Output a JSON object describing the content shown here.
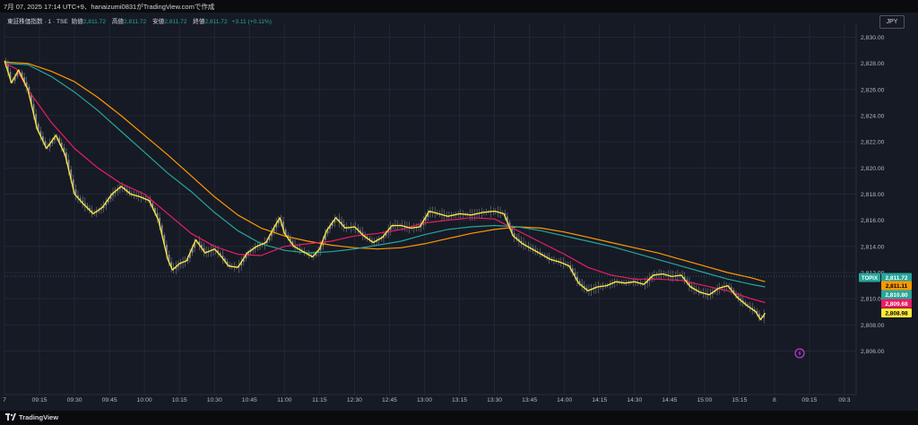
{
  "header": {
    "caption": "7月 07, 2025 17:14 UTC+9、hanaizumi0831がTradingView.comで作成"
  },
  "legend": {
    "symbol": "東証株価指数 · 1 · TSE",
    "open_label": "始値",
    "open_value": "2,811.72",
    "high_label": "高値",
    "high_value": "2,811.72",
    "low_label": "安値",
    "low_value": "2,811.72",
    "close_label": "終値",
    "close_value": "2,811.72",
    "change": "+3.11 (+0.11%)"
  },
  "currency": "JPY",
  "footer": {
    "brand": "TradingView",
    "brand_icon": "tradingview-logo-icon"
  },
  "colors": {
    "price": "#ffeb3b",
    "ma_fast": "#e91e63",
    "ma_mid": "#26a69a",
    "ma_slow": "#ff9800",
    "candle": "#9aa0aa",
    "grid": "#232734",
    "lightning": "#e040fb"
  },
  "chart_data": {
    "type": "line",
    "title": "東証株価指数 · 1 · TSE",
    "ylim": [
      2805,
      2831
    ],
    "y_ticks": [
      2806,
      2808,
      2810,
      2812,
      2814,
      2816,
      2818,
      2820,
      2822,
      2824,
      2826,
      2828,
      2830
    ],
    "y_tick_labels": [
      "2,806.00",
      "2,808.00",
      "2,810.00",
      "2,812.00",
      "2,814.00",
      "2,816.00",
      "2,818.00",
      "2,820.00",
      "2,822.00",
      "2,824.00",
      "2,826.00",
      "2,828.00",
      "2,830.00"
    ],
    "x_ticks": [
      {
        "t": 0,
        "label": "7"
      },
      {
        "t": 15,
        "label": "09:15"
      },
      {
        "t": 30,
        "label": "09:30"
      },
      {
        "t": 45,
        "label": "09:45"
      },
      {
        "t": 60,
        "label": "10:00"
      },
      {
        "t": 75,
        "label": "10:15"
      },
      {
        "t": 90,
        "label": "10:30"
      },
      {
        "t": 105,
        "label": "10:45"
      },
      {
        "t": 120,
        "label": "11:00"
      },
      {
        "t": 135,
        "label": "11:15"
      },
      {
        "t": 150,
        "label": "12:30"
      },
      {
        "t": 165,
        "label": "12:45"
      },
      {
        "t": 180,
        "label": "13:00"
      },
      {
        "t": 195,
        "label": "13:15"
      },
      {
        "t": 210,
        "label": "13:30"
      },
      {
        "t": 225,
        "label": "13:45"
      },
      {
        "t": 240,
        "label": "14:00"
      },
      {
        "t": 255,
        "label": "14:15"
      },
      {
        "t": 270,
        "label": "14:30"
      },
      {
        "t": 285,
        "label": "14:45"
      },
      {
        "t": 300,
        "label": "15:00"
      },
      {
        "t": 315,
        "label": "15:15"
      },
      {
        "t": 330,
        "label": "8"
      },
      {
        "t": 345,
        "label": "09:15"
      },
      {
        "t": 360,
        "label": "09:3"
      }
    ],
    "series": [
      {
        "key": "price",
        "points": [
          [
            0,
            2828.2
          ],
          [
            3,
            2826.5
          ],
          [
            6,
            2827.5
          ],
          [
            10,
            2826
          ],
          [
            14,
            2823
          ],
          [
            18,
            2821.5
          ],
          [
            22,
            2822.5
          ],
          [
            26,
            2821
          ],
          [
            30,
            2818
          ],
          [
            34,
            2817.2
          ],
          [
            38,
            2816.5
          ],
          [
            42,
            2817
          ],
          [
            46,
            2818
          ],
          [
            50,
            2818.6
          ],
          [
            54,
            2818
          ],
          [
            58,
            2817.8
          ],
          [
            62,
            2817.5
          ],
          [
            66,
            2816
          ],
          [
            70,
            2813
          ],
          [
            72,
            2812.2
          ],
          [
            75,
            2812.7
          ],
          [
            78,
            2812.9
          ],
          [
            82,
            2814.5
          ],
          [
            86,
            2813.5
          ],
          [
            90,
            2813.8
          ],
          [
            93,
            2813.2
          ],
          [
            96,
            2812.5
          ],
          [
            100,
            2812.4
          ],
          [
            104,
            2813.5
          ],
          [
            108,
            2814
          ],
          [
            112,
            2814.3
          ],
          [
            116,
            2815.6
          ],
          [
            118,
            2816.2
          ],
          [
            120,
            2815
          ],
          [
            124,
            2814
          ],
          [
            128,
            2813.6
          ],
          [
            132,
            2813.2
          ],
          [
            135,
            2813.8
          ],
          [
            138,
            2815.2
          ],
          [
            142,
            2816.2
          ],
          [
            146,
            2815.4
          ],
          [
            150,
            2815.5
          ],
          [
            154,
            2814.8
          ],
          [
            158,
            2814.3
          ],
          [
            162,
            2814.7
          ],
          [
            166,
            2815.6
          ],
          [
            170,
            2815.6
          ],
          [
            174,
            2815.4
          ],
          [
            178,
            2815.5
          ],
          [
            182,
            2816.7
          ],
          [
            186,
            2816.5
          ],
          [
            190,
            2816.3
          ],
          [
            195,
            2816.5
          ],
          [
            200,
            2816.4
          ],
          [
            205,
            2816.6
          ],
          [
            210,
            2816.7
          ],
          [
            214,
            2816.5
          ],
          [
            218,
            2814.8
          ],
          [
            222,
            2814.2
          ],
          [
            226,
            2813.8
          ],
          [
            230,
            2813.4
          ],
          [
            234,
            2813
          ],
          [
            238,
            2812.8
          ],
          [
            242,
            2812.5
          ],
          [
            246,
            2811.2
          ],
          [
            250,
            2810.6
          ],
          [
            254,
            2810.9
          ],
          [
            258,
            2811
          ],
          [
            262,
            2811.3
          ],
          [
            266,
            2811.2
          ],
          [
            270,
            2811.3
          ],
          [
            274,
            2811.1
          ],
          [
            278,
            2811.8
          ],
          [
            282,
            2811.9
          ],
          [
            286,
            2811.7
          ],
          [
            290,
            2811.8
          ],
          [
            294,
            2810.9
          ],
          [
            298,
            2810.5
          ],
          [
            302,
            2810.3
          ],
          [
            306,
            2810.8
          ],
          [
            310,
            2811
          ],
          [
            314,
            2810.1
          ],
          [
            318,
            2809.5
          ],
          [
            322,
            2809
          ],
          [
            324,
            2808.4
          ],
          [
            326,
            2808.9
          ]
        ]
      },
      {
        "key": "ma_fast",
        "points": [
          [
            0,
            2828
          ],
          [
            5,
            2827.6
          ],
          [
            10,
            2826
          ],
          [
            20,
            2823.5
          ],
          [
            30,
            2821.5
          ],
          [
            40,
            2820
          ],
          [
            50,
            2818.8
          ],
          [
            60,
            2818
          ],
          [
            70,
            2816.5
          ],
          [
            80,
            2815
          ],
          [
            90,
            2814
          ],
          [
            100,
            2813.4
          ],
          [
            110,
            2813.3
          ],
          [
            120,
            2814
          ],
          [
            130,
            2814.2
          ],
          [
            140,
            2814.4
          ],
          [
            150,
            2814.8
          ],
          [
            160,
            2815
          ],
          [
            170,
            2815.3
          ],
          [
            180,
            2815.8
          ],
          [
            190,
            2816
          ],
          [
            200,
            2816.2
          ],
          [
            210,
            2816.1
          ],
          [
            220,
            2815.2
          ],
          [
            230,
            2814.3
          ],
          [
            240,
            2813.4
          ],
          [
            250,
            2812.4
          ],
          [
            260,
            2811.8
          ],
          [
            270,
            2811.5
          ],
          [
            280,
            2811.5
          ],
          [
            290,
            2811.4
          ],
          [
            300,
            2811
          ],
          [
            310,
            2810.6
          ],
          [
            320,
            2810
          ],
          [
            326,
            2809.7
          ]
        ]
      },
      {
        "key": "ma_mid",
        "points": [
          [
            0,
            2828
          ],
          [
            10,
            2827.9
          ],
          [
            20,
            2827
          ],
          [
            30,
            2825.8
          ],
          [
            40,
            2824.4
          ],
          [
            50,
            2822.8
          ],
          [
            60,
            2821.2
          ],
          [
            70,
            2819.6
          ],
          [
            80,
            2818.2
          ],
          [
            90,
            2816.6
          ],
          [
            100,
            2815.2
          ],
          [
            110,
            2814.2
          ],
          [
            120,
            2813.7
          ],
          [
            130,
            2813.5
          ],
          [
            140,
            2813.6
          ],
          [
            150,
            2813.8
          ],
          [
            160,
            2814.1
          ],
          [
            170,
            2814.4
          ],
          [
            180,
            2814.9
          ],
          [
            190,
            2815.3
          ],
          [
            200,
            2815.5
          ],
          [
            210,
            2815.6
          ],
          [
            220,
            2815.5
          ],
          [
            230,
            2815.2
          ],
          [
            240,
            2814.8
          ],
          [
            250,
            2814.4
          ],
          [
            260,
            2814
          ],
          [
            270,
            2813.5
          ],
          [
            280,
            2813
          ],
          [
            290,
            2812.5
          ],
          [
            300,
            2812
          ],
          [
            310,
            2811.5
          ],
          [
            320,
            2811.1
          ],
          [
            326,
            2810.9
          ]
        ]
      },
      {
        "key": "ma_slow",
        "points": [
          [
            0,
            2828.1
          ],
          [
            10,
            2828
          ],
          [
            20,
            2827.4
          ],
          [
            30,
            2826.6
          ],
          [
            40,
            2825.4
          ],
          [
            50,
            2824
          ],
          [
            60,
            2822.5
          ],
          [
            70,
            2821
          ],
          [
            80,
            2819.4
          ],
          [
            90,
            2817.8
          ],
          [
            100,
            2816.4
          ],
          [
            110,
            2815.4
          ],
          [
            120,
            2814.8
          ],
          [
            130,
            2814.4
          ],
          [
            140,
            2814.1
          ],
          [
            150,
            2813.9
          ],
          [
            160,
            2813.8
          ],
          [
            170,
            2813.9
          ],
          [
            180,
            2814.2
          ],
          [
            190,
            2814.6
          ],
          [
            200,
            2815
          ],
          [
            210,
            2815.3
          ],
          [
            220,
            2815.5
          ],
          [
            230,
            2815.4
          ],
          [
            240,
            2815.1
          ],
          [
            250,
            2814.7
          ],
          [
            260,
            2814.3
          ],
          [
            270,
            2813.9
          ],
          [
            280,
            2813.5
          ],
          [
            290,
            2813
          ],
          [
            300,
            2812.5
          ],
          [
            310,
            2812
          ],
          [
            320,
            2811.6
          ],
          [
            326,
            2811.3
          ]
        ]
      }
    ],
    "price_tags": [
      {
        "key": "symbol",
        "label": "TOPIX",
        "value": "2,811.72",
        "y": 2811.72,
        "bg": "#26a69a",
        "fg": "#ffffff"
      },
      {
        "key": "ma_slow",
        "value": "2,811.11",
        "y": 2811.11,
        "bg": "#ff9800",
        "fg": "#000000"
      },
      {
        "key": "ma_mid",
        "value": "2,810.80",
        "y": 2810.8,
        "bg": "#26a69a",
        "fg": "#ffffff"
      },
      {
        "key": "ma_fast",
        "value": "2,809.68",
        "y": 2809.68,
        "bg": "#e91e63",
        "fg": "#ffffff"
      },
      {
        "key": "price",
        "value": "2,808.98",
        "y": 2808.98,
        "bg": "#ffeb3b",
        "fg": "#000000"
      }
    ]
  }
}
